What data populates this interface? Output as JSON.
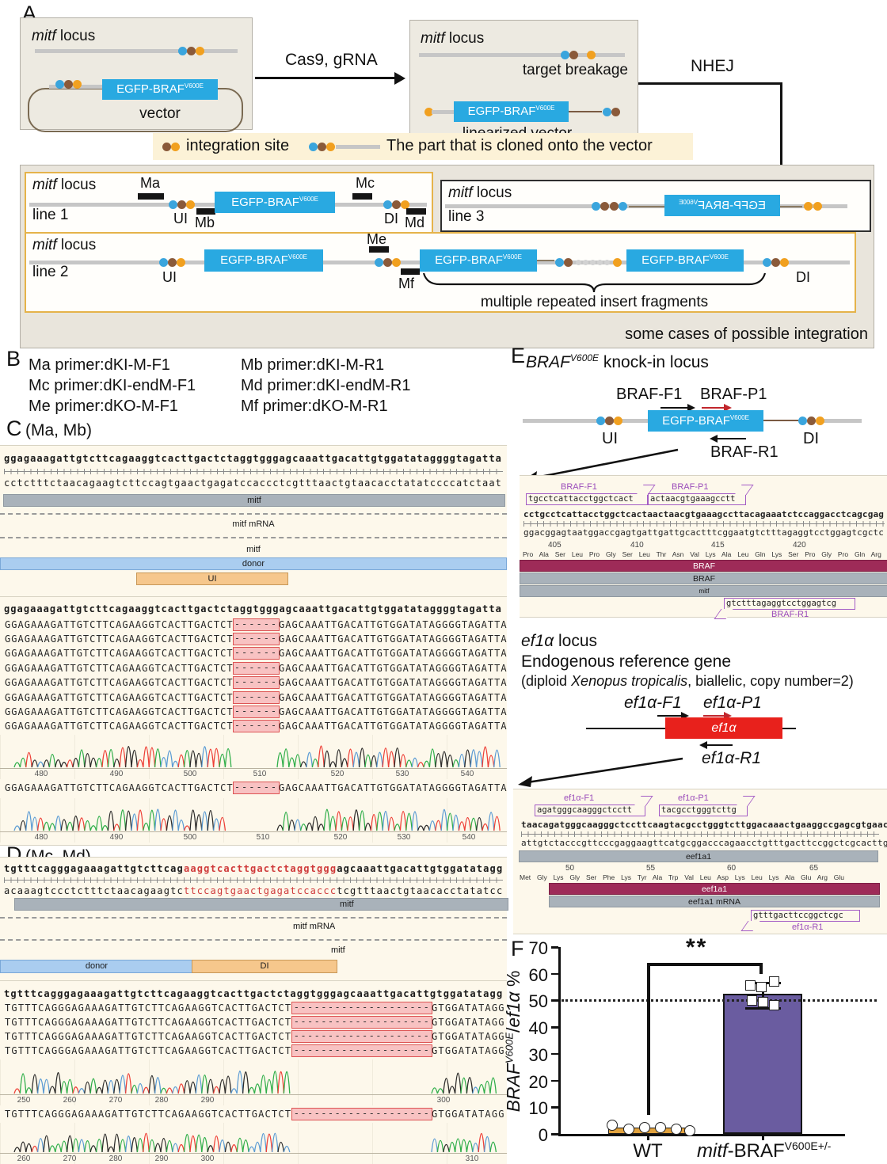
{
  "panelA": {
    "label": "A",
    "box1": {
      "locus_i": "mitf",
      "locus_r": " locus",
      "gene": "EGFP-BRAF",
      "gene_sup": "V600E",
      "vector": "vector"
    },
    "cas9": "Cas9, gRNA",
    "box2": {
      "locus_i": "mitf",
      "locus_r": " locus",
      "breakage": "target breakage",
      "gene": "EGFP-BRAF",
      "gene_sup": "V600E",
      "linearized": "linearized vector"
    },
    "nhej": "NHEJ",
    "legend": {
      "integration": "integration site",
      "cloned": "The part that is cloned onto the vector"
    },
    "line1": {
      "locus_i": "mitf",
      "locus_r": " locus",
      "name": "line 1",
      "ma": "Ma",
      "mb": "Mb",
      "mc": "Mc",
      "md": "Md",
      "ui": "UI",
      "di": "DI",
      "gene": "EGFP-BRAF",
      "gene_sup": "V600E"
    },
    "line3": {
      "locus_i": "mitf",
      "locus_r": " locus",
      "name": "line 3",
      "gene": "EGFP-BRAF",
      "gene_sup": "V600E"
    },
    "line2": {
      "locus_i": "mitf",
      "locus_r": " locus",
      "name": "line 2",
      "me": "Me",
      "mf": "Mf",
      "ui": "UI",
      "di": "DI",
      "gene": "EGFP-BRAF",
      "gene_sup": "V600E",
      "brace": "multiple repeated insert fragments"
    },
    "caption": "some cases of possible integration"
  },
  "panelB": {
    "label": "B",
    "r1l": "Ma primer:dKI-M-F1",
    "r1r": "Mb primer:dKI-M-R1",
    "r2l": "Mc primer:dKI-endM-F1",
    "r2r": "Md primer:dKI-endM-R1",
    "r3l": "Me primer:dKO-M-F1",
    "r3r": "Mf primer:dKO-M-R1"
  },
  "panelC": {
    "label": "C",
    "sub": "(Ma, Mb)",
    "top": "ggagaaagattgtcttcagaaggtcacttgactctaggtgggagcaaattgacattgtggatataggggtagatta",
    "bottom": "cctctttctaacagaagtcttccagtgaactgagatccaccctcgtttaactgtaacacctatatccccatctaat",
    "t_mitf": "mitf",
    "t_mrna": "mitf mRNA",
    "t_mitf2": "mitf",
    "t_donor": "donor",
    "t_ui": "UI",
    "ref": "ggagaaagattgtcttcagaaggtcacttgactctaggtgggagcaaattgacattgtggatataggggtagatta",
    "pre": "GGAGAAAGATTGTCTTCAGAAGGTCACTTGACTCT",
    "del": "------",
    "post": "GAGCAAATTGACATTGTGGATATAGGGGTAGATTA",
    "chrom1": [
      "480",
      "490",
      "500",
      "510",
      "520",
      "530",
      "540"
    ],
    "chrom2": [
      "480",
      "490",
      "500",
      "510",
      "520",
      "530",
      "540"
    ]
  },
  "panelD": {
    "label": "D",
    "sub": "(Mc, Md)",
    "top1": "tgtttcagggagaaagattgtcttcag",
    "topr": "aaggtcacttgactctaggtggg",
    "top2": "agcaaattgacattgtggatatagg",
    "bot1": "acaaagtccctctttctaacagaagtc",
    "botr": "ttccagtgaactgagatccaccc",
    "bot2": "tcgtttaactgtaacacctatatcc",
    "t_mitf": "mitf",
    "t_mrna": "mitf mRNA",
    "t_mitf2": "mitf",
    "t_donor": "donor",
    "t_di": "DI",
    "ref": "tgtttcagggagaaagattgtcttcagaaggtcacttgactctaggtgggagcaaattgacattgtggatatagg",
    "pre": "TGTTTCAGGGAGAAAGATTGTCTTCAGAAGGTCACTTGACTCT",
    "del": "--------------------",
    "post": "GTGGATATAGG",
    "chrom1": [
      "250",
      "260",
      "270",
      "280",
      "290",
      "300"
    ],
    "chrom2": [
      "260",
      "270",
      "280",
      "290",
      "300",
      "310"
    ]
  },
  "panelE": {
    "label": "E",
    "title_i": "BRAF",
    "title_sup": "V600E",
    "title_r": " knock-in locus",
    "d1": {
      "f1": "BRAF-F1",
      "p1": "BRAF-P1",
      "r1": "BRAF-R1",
      "ui": "UI",
      "di": "DI",
      "gene": "EGFP-BRAF",
      "gene_sup": "V600E"
    },
    "v1": {
      "f1": "BRAF-F1",
      "f1_seq": "tgcctcattacctggctcact",
      "p1": "BRAF-P1",
      "p1_seq": "actaacgtgaaagcctt",
      "top": "cctgcctcattacctggctcactaactaacgtgaaagccttacagaaatctccaggacctcagcgag",
      "bottom": "ggacggagtaatggaccgagtgattgattgcactttcggaatgtctttagaggtcctggagtcgctc",
      "n1": "405",
      "n2": "410",
      "n3": "415",
      "n4": "420",
      "aa": "Pro Ala Ser Leu Pro Gly Ser Leu Thr Asn Val Lys Ala Leu Gln Lys Ser Pro Gly Pro Gln Arg",
      "t1": "BRAF",
      "t2": "BRAF",
      "t3": "mitf",
      "r1_seq": "gtctttagaggtcctggagtcg",
      "r1": "BRAF-R1"
    },
    "ef_i": "ef1α",
    "ef_r": " locus",
    "endo": "Endogenous reference gene",
    "dip_pre": "(diploid ",
    "dip_sp": "Xenopus tropicalis",
    "dip_post": ", biallelic, copy number=2)",
    "d2": {
      "f1i": "ef1α",
      "f1r": "-F1",
      "p1i": "ef1α",
      "p1r": "-P1",
      "r1i": "ef1α",
      "r1r": "-R1",
      "gene": "ef1α"
    },
    "v2": {
      "f1": "ef1α-F1",
      "f1_seq": "agatgggcaagggctcctt",
      "p1": "ef1α-P1",
      "p1_seq": "tacgcctgggtcttg",
      "top": "taacagatgggcaagggctccttcaagtacgcctgggtcttggacaaactgaaggccgagcgtgaac",
      "bottom": "attgtctacccgttcccgaggaagttcatgcggacccagaacctgtttgacttccggctcgcacttg",
      "t0": "eef1a1",
      "n1": "50",
      "n2": "55",
      "n3": "60",
      "n4": "65",
      "aa": "Met Gly Lys Gly Ser Phe Lys Tyr Ala Trp Val Leu Asp Lys Leu Lys Ala Glu Arg Glu",
      "t1": "eef1a1",
      "t2": "eef1a1 mRNA",
      "r1_seq": "gtttgacttccggctcgc",
      "r1": "ef1α-R1"
    }
  },
  "panelF": {
    "label": "F",
    "sig": "**",
    "y_i": "BRAF",
    "y_sup": "V600E",
    "y_slash": "/",
    "y_ef": "ef1α",
    "y_pct": " %",
    "t0": "0",
    "t10": "10",
    "t20": "20",
    "t30": "30",
    "t40": "40",
    "t50": "50",
    "t60": "60",
    "t70": "70",
    "x1": "WT",
    "x2i": "mitf",
    "x2m": "-BRAF",
    "x2sup": "V600E+/-"
  },
  "chart_data": {
    "type": "bar",
    "categories": [
      "WT",
      "mitf-BRAF^V600E+/-"
    ],
    "values": [
      1,
      52.5
    ],
    "points": [
      {
        "name": "WT",
        "values": [
          2,
          1.5,
          1.5,
          1.5,
          1,
          1
        ]
      },
      {
        "name": "mitf-BRAF^V600E+/-",
        "values": [
          57,
          56.5,
          58,
          51,
          50.5,
          49
        ]
      }
    ],
    "error_bar": {
      "series": "mitf-BRAF^V600E+/-",
      "upper": 57.5,
      "lower": 48
    },
    "ylabel": "BRAF^V600E/ef1α %",
    "ylim": [
      0,
      70
    ],
    "yticks": [
      0,
      10,
      20,
      30,
      40,
      50,
      60,
      70
    ],
    "reference_line": 50,
    "significance": "**",
    "bar_colors": [
      "#e2a33e",
      "#6a5ca0"
    ],
    "legend_position": "none",
    "grid": false
  }
}
